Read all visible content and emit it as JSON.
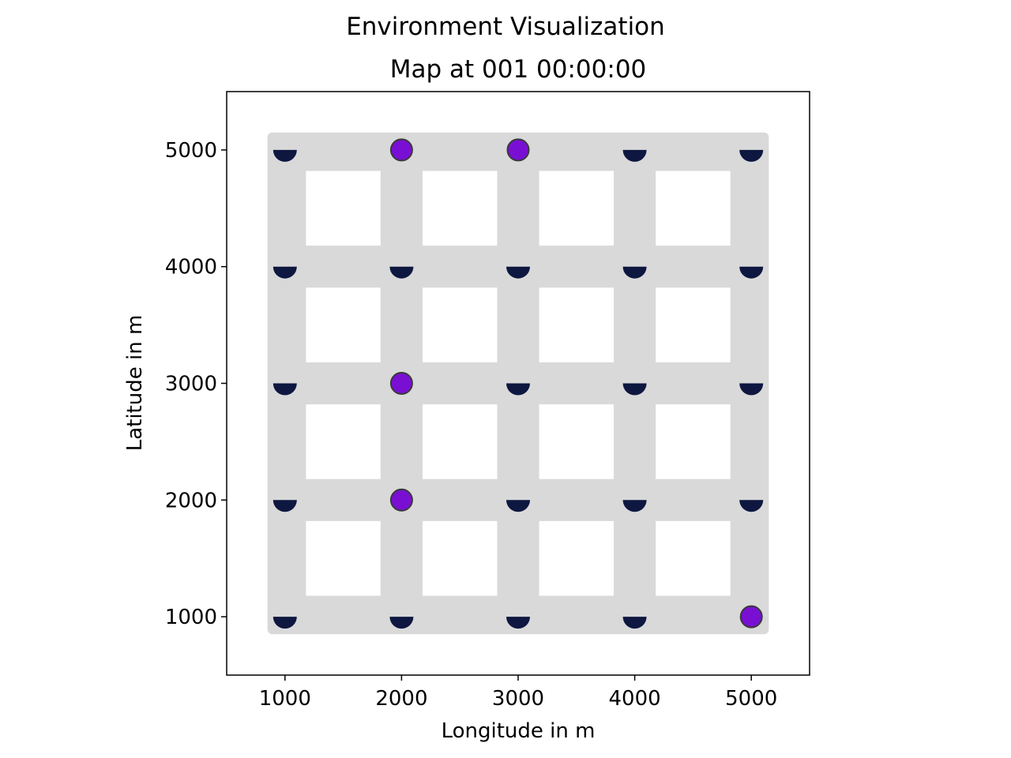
{
  "chart_data": {
    "type": "scatter",
    "suptitle": "Environment Visualization",
    "title": "Map at 001 00:00:00",
    "xlabel": "Longitude in m",
    "ylabel": "Latitude in m",
    "xlim": [
      500,
      5500
    ],
    "ylim": [
      500,
      5500
    ],
    "xticks": [
      1000,
      2000,
      3000,
      4000,
      5000
    ],
    "yticks": [
      1000,
      2000,
      3000,
      4000,
      5000
    ],
    "xtick_labels": [
      "1000",
      "2000",
      "3000",
      "4000",
      "5000"
    ],
    "ytick_labels": [
      "1000",
      "2000",
      "3000",
      "4000",
      "5000"
    ],
    "grid": false,
    "road_network": {
      "extent_x": [
        850,
        5150
      ],
      "extent_y": [
        850,
        5150
      ],
      "blocks": [
        {
          "x": [
            1180,
            1820
          ],
          "y": [
            1180,
            1820
          ]
        },
        {
          "x": [
            2180,
            2820
          ],
          "y": [
            1180,
            1820
          ]
        },
        {
          "x": [
            3180,
            3820
          ],
          "y": [
            1180,
            1820
          ]
        },
        {
          "x": [
            4180,
            4820
          ],
          "y": [
            1180,
            1820
          ]
        },
        {
          "x": [
            1180,
            1820
          ],
          "y": [
            2180,
            2820
          ]
        },
        {
          "x": [
            2180,
            2820
          ],
          "y": [
            2180,
            2820
          ]
        },
        {
          "x": [
            3180,
            3820
          ],
          "y": [
            2180,
            2820
          ]
        },
        {
          "x": [
            4180,
            4820
          ],
          "y": [
            2180,
            2820
          ]
        },
        {
          "x": [
            1180,
            1820
          ],
          "y": [
            3180,
            3820
          ]
        },
        {
          "x": [
            2180,
            2820
          ],
          "y": [
            3180,
            3820
          ]
        },
        {
          "x": [
            3180,
            3820
          ],
          "y": [
            3180,
            3820
          ]
        },
        {
          "x": [
            4180,
            4820
          ],
          "y": [
            3180,
            3820
          ]
        },
        {
          "x": [
            1180,
            1820
          ],
          "y": [
            4180,
            4820
          ]
        },
        {
          "x": [
            2180,
            2820
          ],
          "y": [
            4180,
            4820
          ]
        },
        {
          "x": [
            3180,
            3820
          ],
          "y": [
            4180,
            4820
          ]
        },
        {
          "x": [
            4180,
            4820
          ],
          "y": [
            4180,
            4820
          ]
        }
      ],
      "road_color": "#d9d9d9",
      "block_color": "#ffffff"
    },
    "series": [
      {
        "marker": "half-circle",
        "color": "#0d1740",
        "points": [
          {
            "x": 1000,
            "y": 5000
          },
          {
            "x": 4000,
            "y": 5000
          },
          {
            "x": 5000,
            "y": 5000
          },
          {
            "x": 1000,
            "y": 4000
          },
          {
            "x": 2000,
            "y": 4000
          },
          {
            "x": 3000,
            "y": 4000
          },
          {
            "x": 4000,
            "y": 4000
          },
          {
            "x": 5000,
            "y": 4000
          },
          {
            "x": 1000,
            "y": 3000
          },
          {
            "x": 3000,
            "y": 3000
          },
          {
            "x": 4000,
            "y": 3000
          },
          {
            "x": 5000,
            "y": 3000
          },
          {
            "x": 1000,
            "y": 2000
          },
          {
            "x": 3000,
            "y": 2000
          },
          {
            "x": 4000,
            "y": 2000
          },
          {
            "x": 5000,
            "y": 2000
          },
          {
            "x": 1000,
            "y": 1000
          },
          {
            "x": 2000,
            "y": 1000
          },
          {
            "x": 3000,
            "y": 1000
          },
          {
            "x": 4000,
            "y": 1000
          }
        ]
      },
      {
        "marker": "circle",
        "color": "#7a0fd4",
        "edge_color": "#3a3a3a",
        "points": [
          {
            "x": 2000,
            "y": 5000
          },
          {
            "x": 3000,
            "y": 5000
          },
          {
            "x": 2000,
            "y": 3000
          },
          {
            "x": 2000,
            "y": 2000
          },
          {
            "x": 5000,
            "y": 1000
          }
        ]
      }
    ]
  }
}
